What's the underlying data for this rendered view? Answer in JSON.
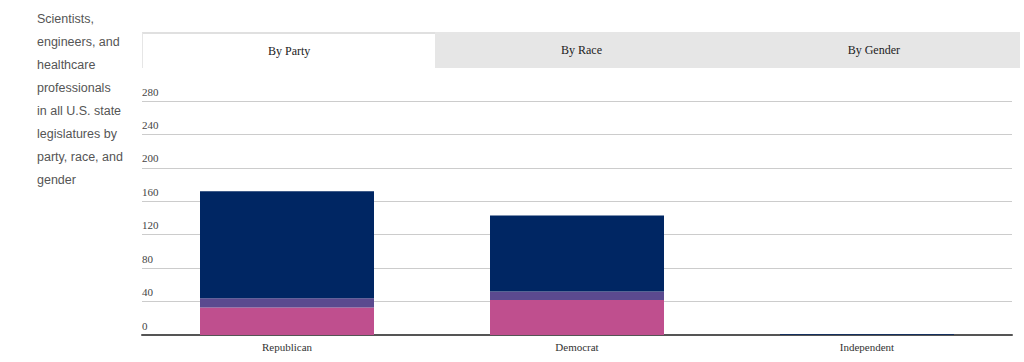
{
  "tabs": [
    "By Party",
    "By Race",
    "By Gender"
  ],
  "chart_data": {
    "type": "bar",
    "title": "Scientists, engineers, and healthcare professionals in all U.S. state legislatures by party, race, and gender",
    "categories": [
      "Republican",
      "Democrat",
      "Independent"
    ],
    "series": [
      {
        "color": "#bf4f8e",
        "values": [
          33,
          42,
          0
        ]
      },
      {
        "color": "#5b4a8f",
        "values": [
          11,
          10,
          0
        ]
      },
      {
        "color": "#002663",
        "values": [
          128,
          91,
          1
        ]
      }
    ],
    "stacked": true,
    "ylim": [
      0,
      280
    ],
    "yticks": [
      0,
      40,
      80,
      120,
      160,
      200,
      240,
      280
    ],
    "grid": true
  }
}
